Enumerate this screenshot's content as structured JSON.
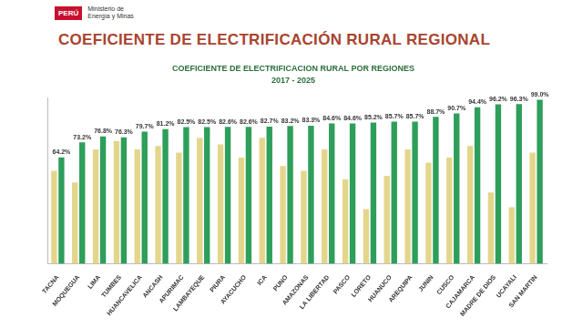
{
  "header": {
    "logo_country": "PERÚ",
    "logo_ministry": "Ministerio de Energía y Minas",
    "title": "COEFICIENTE DE ELECTRIFICACIÓN RURAL REGIONAL"
  },
  "chart_data": {
    "type": "bar",
    "title": "COEFICIENTE DE ELECTRIFICACION RURAL POR REGIONES",
    "subtitle": "2017 - 2025",
    "categories": [
      "TACNA",
      "MOQUEGUA",
      "LIMA",
      "TUMBES",
      "HUANCAVELICA",
      "ANCASH",
      "APURIMAC",
      "LAMBAYEQUE",
      "PIURA",
      "AYACUCHO",
      "ICA",
      "PUNO",
      "AMAZONAS",
      "LA LIBERTAD",
      "PASCO",
      "LORETO",
      "HUANUCO",
      "AREQUIPA",
      "JUNIN",
      "CUSCO",
      "CAJAMARCA",
      "MADRE DE DIOS",
      "UCAYALI",
      "SAN MARTIN"
    ],
    "series": [
      {
        "color": "#e3d68c",
        "values": [
          56,
          49,
          69,
          74,
          69,
          71,
          67,
          76,
          72,
          64,
          76,
          59,
          56,
          69,
          51,
          33,
          53,
          69,
          61,
          64,
          71,
          43,
          34,
          67
        ]
      },
      {
        "color": "#2e9e5b",
        "data_labels": true,
        "values": [
          64.2,
          73.2,
          76.8,
          76.3,
          79.7,
          81.2,
          82.5,
          82.5,
          82.6,
          82.6,
          82.7,
          83.2,
          83.3,
          84.6,
          84.6,
          85.2,
          85.7,
          85.7,
          88.7,
          90.7,
          94.4,
          96.2,
          96.3,
          99.0
        ],
        "value_labels": [
          "64.2%",
          "73.2%",
          "76.8%",
          "76.3%",
          "79.7%",
          "81.2%",
          "82.5%",
          "82.5%",
          "82.6%",
          "82.6%",
          "82.7%",
          "83.2%",
          "83.3%",
          "84.6%",
          "84.6%",
          "85.2%",
          "85.7%",
          "85.7%",
          "88.7%",
          "90.7%",
          "94.4%",
          "96.2%",
          "96.3%",
          "99.0%"
        ]
      }
    ],
    "ylim": [
      0,
      100
    ],
    "grid": false,
    "tick_labels": "x"
  }
}
